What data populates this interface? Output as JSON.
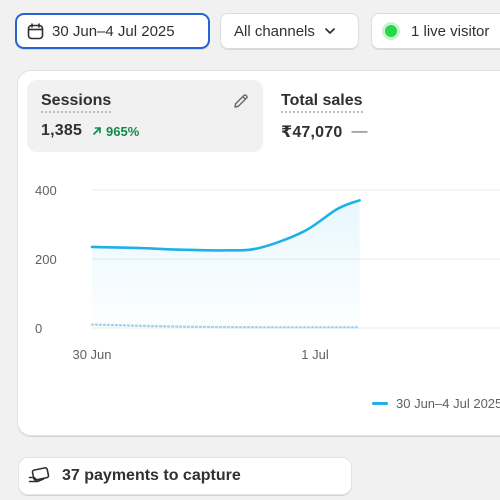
{
  "filters": {
    "date_range": "30 Jun–4 Jul 2025",
    "channel": "All channels",
    "live_visitors": "1 live visitor"
  },
  "metrics": [
    {
      "label": "Sessions",
      "value": "1,385",
      "change": "965%"
    },
    {
      "label": "Total sales",
      "value": "₹47,070",
      "change": "—"
    }
  ],
  "icons": {
    "date": "calendar-icon",
    "channel": "chevron-down-icon",
    "live": "live-status-dot",
    "edit": "pencil-icon",
    "trend": "arrow-up-right-icon",
    "payments": "payment-icon"
  },
  "colors": {
    "accent": "#2463d6",
    "series_current": "#1fb0e8",
    "series_previous": "#9fd8f0",
    "positive": "#0f8a4a",
    "live": "#27d64a"
  },
  "chart_data": {
    "type": "line",
    "x_ticks": [
      "30 Jun",
      "1 Jul"
    ],
    "y_ticks": [
      "400",
      "200",
      "0"
    ],
    "ylim": [
      0,
      400
    ],
    "grid": true,
    "legend_position": "bottom-right",
    "series": [
      {
        "name": "30 Jun–4 Jul 2025",
        "style": "solid",
        "points": [
          [
            0,
            235
          ],
          [
            0.2,
            232
          ],
          [
            0.4,
            227
          ],
          [
            0.6,
            225
          ],
          [
            0.75,
            232
          ],
          [
            0.95,
            280
          ],
          [
            1.1,
            345
          ],
          [
            1.2,
            370
          ]
        ]
      },
      {
        "style": "dotted",
        "points": [
          [
            0,
            10
          ],
          [
            0.4,
            4
          ],
          [
            0.8,
            2
          ],
          [
            1.2,
            2
          ]
        ]
      }
    ]
  },
  "payments": {
    "label": "37 payments to capture"
  }
}
